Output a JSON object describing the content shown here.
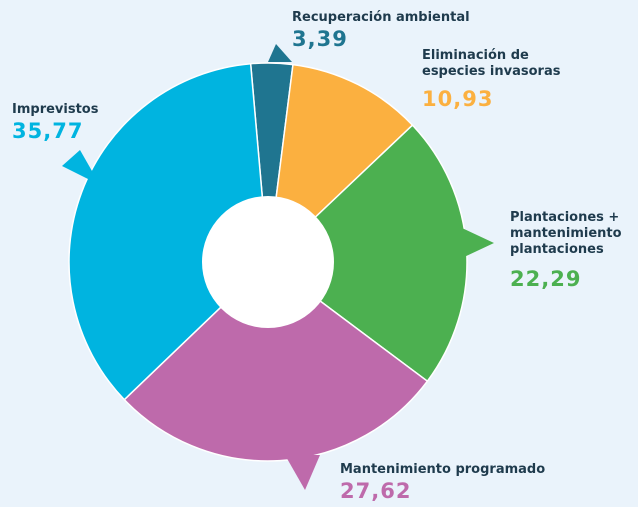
{
  "chart_data": {
    "type": "donut",
    "categories": [
      "Recuperación ambiental",
      "Eliminación de especies invasoras",
      "Plantaciones + mantenimiento plantaciones",
      "Mantenimiento programado",
      "Imprevistos"
    ],
    "values": [
      3.39,
      10.93,
      22.29,
      27.62,
      35.77
    ],
    "value_labels": [
      "3,39",
      "10,93",
      "22,29",
      "27,62",
      "35,77"
    ],
    "colors": [
      "#1f7590",
      "#fbb040",
      "#4cb050",
      "#be6aab",
      "#00b4e0"
    ]
  }
}
